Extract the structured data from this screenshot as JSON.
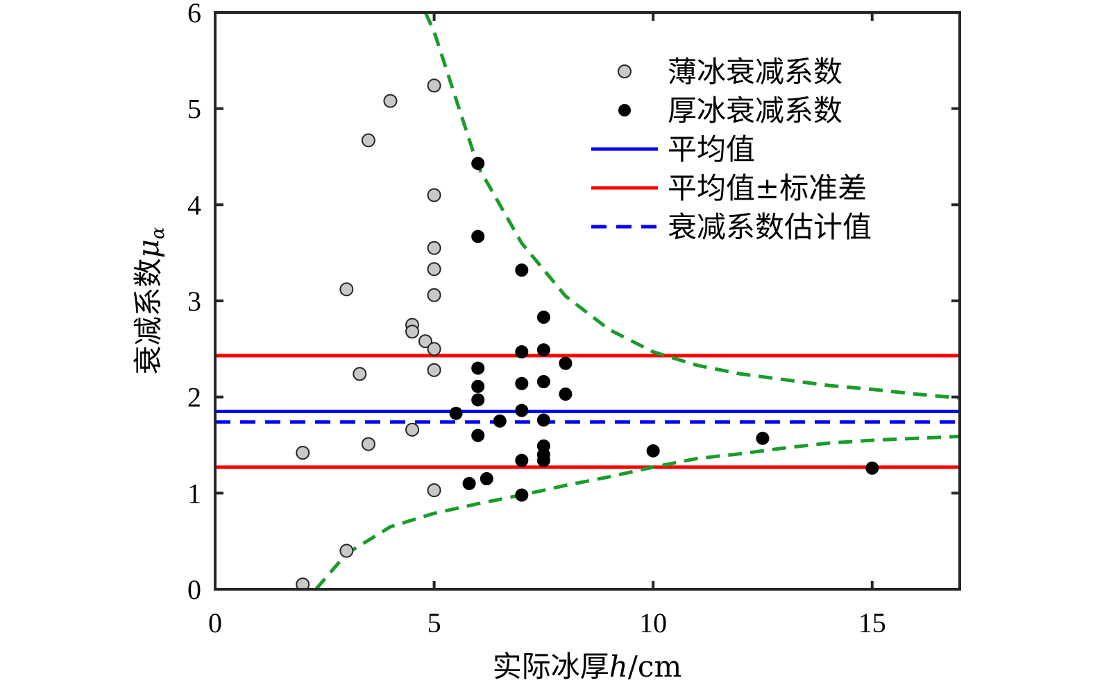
{
  "chart_data": {
    "type": "scatter",
    "title": "",
    "xlabel": "实际冰厚h/cm",
    "ylabel": "衰减系数μα",
    "xlim": [
      0,
      17
    ],
    "ylim": [
      0,
      6
    ],
    "x_ticks": [
      0,
      5,
      10,
      15
    ],
    "y_ticks": [
      0,
      1,
      2,
      3,
      4,
      5,
      6
    ],
    "grid": false,
    "legend_position": "top-right",
    "colors": {
      "thin": "#c8c8c8",
      "thick": "#000000",
      "mean": "#0000ff",
      "std": "#ff0000",
      "estimate": "#0000ff",
      "envelope": "#1a9c2a"
    },
    "series": [
      {
        "name": "薄冰衰减系数",
        "kind": "scatter",
        "points": [
          [
            2.0,
            0.05
          ],
          [
            2.0,
            1.42
          ],
          [
            3.0,
            0.4
          ],
          [
            3.0,
            3.12
          ],
          [
            3.3,
            2.24
          ],
          [
            3.5,
            1.51
          ],
          [
            3.5,
            4.67
          ],
          [
            4.0,
            5.08
          ],
          [
            4.5,
            2.75
          ],
          [
            4.5,
            2.68
          ],
          [
            4.5,
            1.66
          ],
          [
            4.8,
            2.58
          ],
          [
            5.0,
            5.24
          ],
          [
            5.0,
            4.1
          ],
          [
            5.0,
            3.55
          ],
          [
            5.0,
            3.33
          ],
          [
            5.0,
            3.06
          ],
          [
            5.0,
            2.5
          ],
          [
            5.0,
            2.28
          ],
          [
            5.0,
            1.03
          ]
        ]
      },
      {
        "name": "厚冰衰减系数",
        "kind": "scatter",
        "points": [
          [
            5.5,
            1.83
          ],
          [
            5.8,
            1.1
          ],
          [
            6.0,
            4.43
          ],
          [
            6.0,
            3.67
          ],
          [
            6.0,
            2.3
          ],
          [
            6.0,
            2.11
          ],
          [
            6.0,
            1.97
          ],
          [
            6.0,
            1.6
          ],
          [
            6.2,
            1.15
          ],
          [
            6.5,
            1.75
          ],
          [
            7.0,
            3.32
          ],
          [
            7.0,
            2.47
          ],
          [
            7.0,
            2.14
          ],
          [
            7.0,
            1.86
          ],
          [
            7.0,
            1.34
          ],
          [
            7.0,
            0.98
          ],
          [
            7.5,
            2.83
          ],
          [
            7.5,
            2.49
          ],
          [
            7.5,
            2.16
          ],
          [
            7.5,
            1.76
          ],
          [
            7.5,
            1.49
          ],
          [
            7.5,
            1.4
          ],
          [
            7.5,
            1.34
          ],
          [
            8.0,
            2.35
          ],
          [
            8.0,
            2.03
          ],
          [
            10.0,
            1.44
          ],
          [
            12.5,
            1.57
          ],
          [
            15.0,
            1.26
          ]
        ]
      },
      {
        "name": "平均值",
        "kind": "hline",
        "y": 1.85
      },
      {
        "name": "平均值±标准差",
        "kind": "hline",
        "y": [
          2.43,
          1.27
        ]
      },
      {
        "name": "衰减系数估计值",
        "kind": "hline",
        "y": 1.74
      }
    ],
    "envelope_upper": [
      [
        4.8,
        6.0
      ],
      [
        5.0,
        5.8
      ],
      [
        5.5,
        5.1
      ],
      [
        6.0,
        4.4
      ],
      [
        7.0,
        3.6
      ],
      [
        8.0,
        3.05
      ],
      [
        9.0,
        2.7
      ],
      [
        10.0,
        2.47
      ],
      [
        11.0,
        2.33
      ],
      [
        12.0,
        2.24
      ],
      [
        13.0,
        2.18
      ],
      [
        14.0,
        2.12
      ],
      [
        15.0,
        2.08
      ],
      [
        16.0,
        2.03
      ],
      [
        17.0,
        1.99
      ]
    ],
    "envelope_lower": [
      [
        2.3,
        0.0
      ],
      [
        3.0,
        0.37
      ],
      [
        4.0,
        0.65
      ],
      [
        5.0,
        0.79
      ],
      [
        6.0,
        0.89
      ],
      [
        7.0,
        0.98
      ],
      [
        8.0,
        1.08
      ],
      [
        9.0,
        1.17
      ],
      [
        10.0,
        1.27
      ],
      [
        11.0,
        1.36
      ],
      [
        12.0,
        1.41
      ],
      [
        13.0,
        1.47
      ],
      [
        14.0,
        1.52
      ],
      [
        15.0,
        1.55
      ],
      [
        16.0,
        1.57
      ],
      [
        17.0,
        1.59
      ]
    ]
  }
}
